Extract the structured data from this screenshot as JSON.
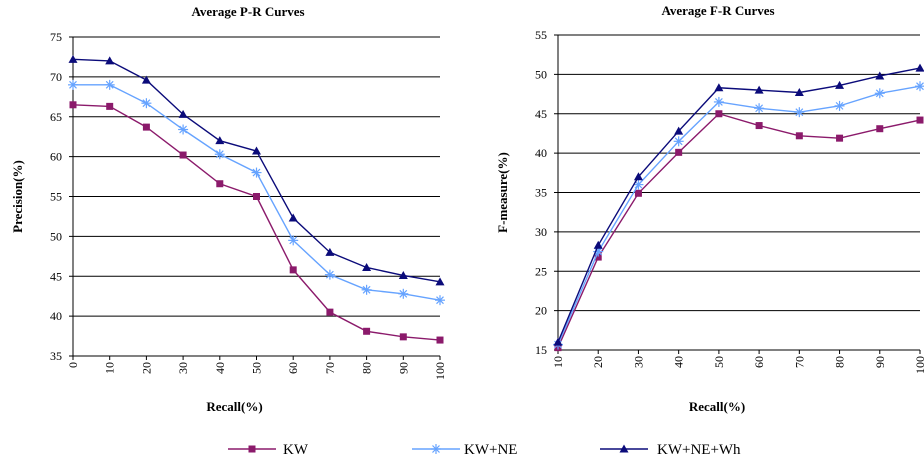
{
  "colors": {
    "KW": "#8B1A6B",
    "KW+NE": "#66A3FF",
    "KW+NE+Wh": "#0B0B7A"
  },
  "legend": {
    "items": [
      {
        "name": "KW",
        "marker": "square"
      },
      {
        "name": "KW+NE",
        "marker": "asterisk"
      },
      {
        "name": "KW+NE+Wh",
        "marker": "triangle"
      }
    ]
  },
  "chart_data": [
    {
      "type": "line",
      "title": "Average P-R Curves",
      "xlabel": "Recall(%)",
      "ylabel": "Precision(%)",
      "x": [
        0,
        10,
        20,
        30,
        40,
        50,
        60,
        70,
        80,
        90,
        100
      ],
      "xtick_labels": [
        "0",
        "10",
        "20",
        "30",
        "40",
        "50",
        "60",
        "70",
        "80",
        "90",
        "100"
      ],
      "ylim": [
        35,
        75
      ],
      "yticks": [
        35,
        40,
        45,
        50,
        55,
        60,
        65,
        70,
        75
      ],
      "grid": true,
      "series": [
        {
          "name": "KW",
          "values": [
            66.5,
            66.3,
            63.7,
            60.2,
            56.6,
            55.0,
            45.8,
            40.5,
            38.1,
            37.4,
            37.0
          ]
        },
        {
          "name": "KW+NE",
          "values": [
            69.0,
            69.0,
            66.7,
            63.4,
            60.3,
            58.0,
            49.5,
            45.2,
            43.3,
            42.8,
            42.0
          ]
        },
        {
          "name": "KW+NE+Wh",
          "values": [
            72.2,
            72.0,
            69.6,
            65.3,
            62.0,
            60.7,
            52.3,
            48.0,
            46.1,
            45.1,
            44.3
          ]
        }
      ]
    },
    {
      "type": "line",
      "title": "Average F-R Curves",
      "xlabel": "Recall(%)",
      "ylabel": "F-measure(%)",
      "x": [
        10,
        20,
        30,
        40,
        50,
        60,
        70,
        80,
        90,
        100
      ],
      "xtick_labels": [
        "10",
        "20",
        "30",
        "40",
        "50",
        "60",
        "70",
        "80",
        "90",
        "100"
      ],
      "ylim": [
        15,
        55
      ],
      "yticks": [
        15,
        20,
        25,
        30,
        35,
        40,
        45,
        50,
        55
      ],
      "grid": true,
      "series": [
        {
          "name": "KW",
          "values": [
            15.3,
            26.8,
            34.9,
            40.1,
            45.0,
            43.5,
            42.2,
            41.9,
            43.1,
            44.2
          ]
        },
        {
          "name": "KW+NE",
          "values": [
            15.7,
            27.5,
            36.0,
            41.5,
            46.5,
            45.7,
            45.2,
            46.0,
            47.6,
            48.5
          ]
        },
        {
          "name": "KW+NE+Wh",
          "values": [
            16.0,
            28.3,
            37.0,
            42.8,
            48.3,
            48.0,
            47.7,
            48.6,
            49.8,
            50.8
          ]
        }
      ]
    }
  ]
}
